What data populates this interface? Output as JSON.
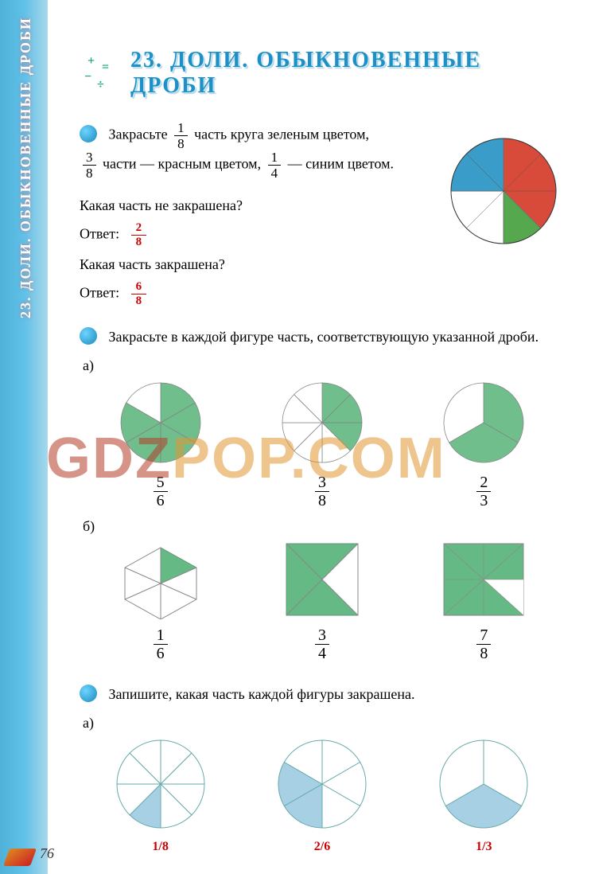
{
  "sidebar": {
    "label": "23. ДОЛИ. ОБЫКНОВЕННЫЕ ДРОБИ"
  },
  "header": {
    "title": "23. ДОЛИ. ОБЫКНОВЕННЫЕ ДРОБИ"
  },
  "task1": {
    "line1_pre": "Закрасьте ",
    "f1": {
      "n": "1",
      "d": "8"
    },
    "line1_post": " часть круга зеленым цветом,",
    "f2": {
      "n": "3",
      "d": "8"
    },
    "line2_mid": " части — красным цветом, ",
    "f3": {
      "n": "1",
      "d": "4"
    },
    "line2_end": " — синим цветом.",
    "q1": "Какая часть не закрашена?",
    "ans_label": "Ответ:",
    "ans1": {
      "n": "2",
      "d": "8"
    },
    "q2": "Какая часть закрашена?",
    "ans2": {
      "n": "6",
      "d": "8"
    }
  },
  "pie": {
    "slices": [
      {
        "start": 0,
        "end": 135,
        "color": "#d84a3a"
      },
      {
        "start": 135,
        "end": 180,
        "color": "#56a84e"
      },
      {
        "start": 180,
        "end": 270,
        "color": "#ffffff"
      },
      {
        "start": 270,
        "end": 360,
        "color": "#3a9cc8"
      }
    ],
    "stroke": "#888",
    "radius": 66
  },
  "task2": {
    "text": "Закрасьте в каждой фигуре часть, соответствующую указанной дроби.",
    "a_label": "а)",
    "b_label": "б)",
    "rowA": [
      {
        "frac": {
          "n": "5",
          "d": "6"
        }
      },
      {
        "frac": {
          "n": "3",
          "d": "8"
        }
      },
      {
        "frac": {
          "n": "2",
          "d": "3"
        }
      }
    ],
    "rowB": [
      {
        "frac": {
          "n": "1",
          "d": "6"
        }
      },
      {
        "frac": {
          "n": "3",
          "d": "4"
        }
      },
      {
        "frac": {
          "n": "7",
          "d": "8"
        }
      }
    ],
    "fill_color": "#3fa866",
    "fill_color_light": "#6cc28e"
  },
  "task3": {
    "text": "Запишите, какая часть каждой фигуры закрашена.",
    "a_label": "а)",
    "answers": [
      "1/8",
      "2/6",
      "1/3"
    ],
    "ans_color": "#c00"
  },
  "watermark": {
    "text_a": "GDZ",
    "text_b": "POP.COM"
  },
  "page_number": "76"
}
